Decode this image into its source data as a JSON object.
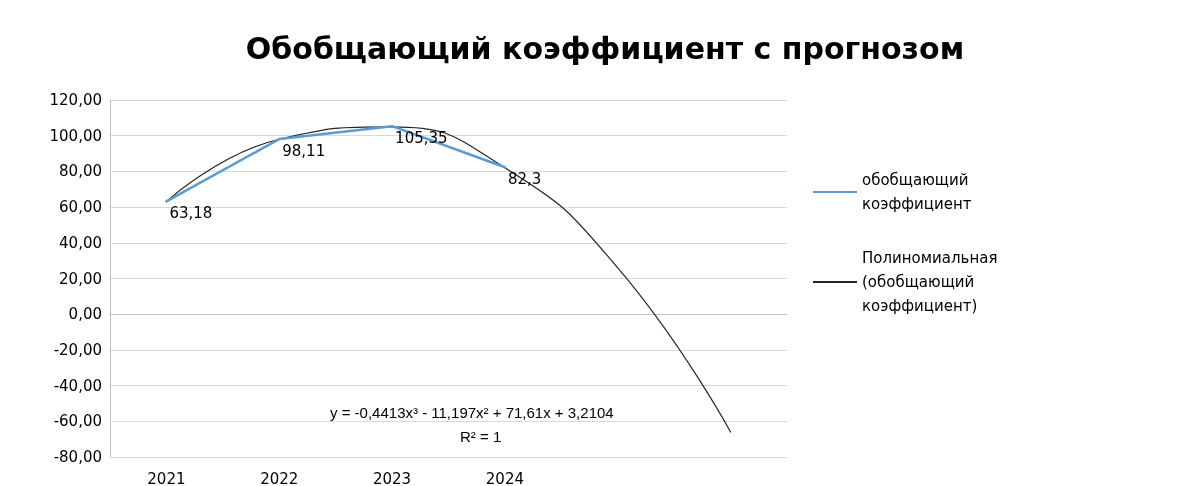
{
  "chart_data": {
    "type": "line",
    "title": "Обобщающий коэффициент с прогнозом",
    "categories": [
      "2021",
      "2022",
      "2023",
      "2024",
      null,
      null
    ],
    "series": [
      {
        "name": "обобщающий коэффициент",
        "color": "#5b9bd5",
        "values": [
          63.18,
          98.11,
          105.35,
          82.3,
          null,
          null
        ],
        "value_labels": [
          "63,18",
          "98,11",
          "105,35",
          "82,3",
          null,
          null
        ]
      },
      {
        "name": "Полиномиальная (обобщающий коэффициент)",
        "color": "#262626",
        "values": [
          63,
          98,
          105,
          82,
          26,
          -66
        ]
      }
    ],
    "ylim": [
      -80,
      120
    ],
    "yticks": [
      {
        "value": -80,
        "label": "-80,00"
      },
      {
        "value": -60,
        "label": "-60,00"
      },
      {
        "value": -40,
        "label": "-40,00"
      },
      {
        "value": -20,
        "label": "-20,00"
      },
      {
        "value": 0,
        "label": "0,00"
      },
      {
        "value": 20,
        "label": "20,00"
      },
      {
        "value": 40,
        "label": "40,00"
      },
      {
        "value": 60,
        "label": "60,00"
      },
      {
        "value": 80,
        "label": "80,00"
      },
      {
        "value": 100,
        "label": "100,00"
      },
      {
        "value": 120,
        "label": "120,00"
      }
    ],
    "annotations": [
      "y = -0,4413x³ - 11,197x² + 71,61x + 3,2104",
      "R² = 1"
    ],
    "grid": "y",
    "legend": "right",
    "marker": "none",
    "line_style": "solid"
  }
}
